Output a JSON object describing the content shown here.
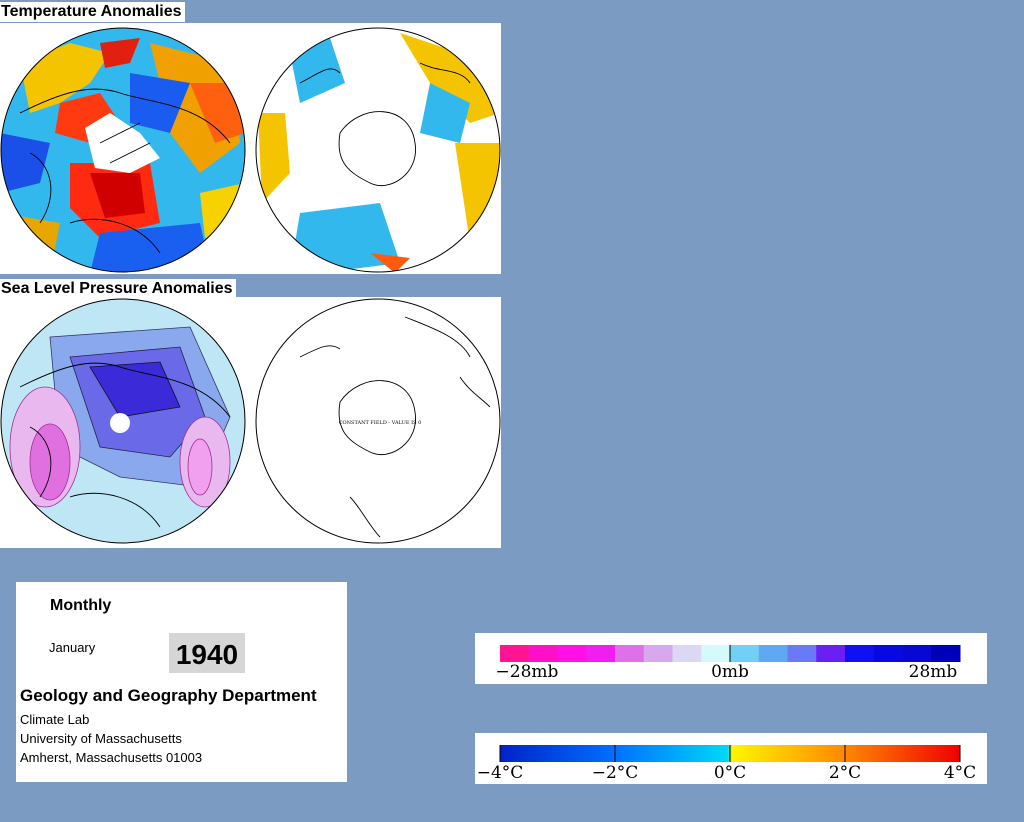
{
  "sections": {
    "temperature_title": "Temperature Anomalies",
    "pressure_title": "Sea Level Pressure Anomalies",
    "constant_field_note": "CONSTANT FIELD - VALUE IS 0"
  },
  "info": {
    "period": "Monthly",
    "month": "January",
    "year": "1940",
    "department": "Geology and Geography Department",
    "lab": "Climate Lab",
    "university": "University of Massachusetts",
    "address": "Amherst, Massachusetts 01003"
  },
  "pressure_legend": {
    "labels": [
      "−28mb",
      "0mb",
      "28mb"
    ],
    "colors": [
      "#ff1493",
      "#ff10c8",
      "#ff10e6",
      "#f01ef0",
      "#e070e8",
      "#d8a8ee",
      "#dcd8f4",
      "#d4fafa",
      "#72cff6",
      "#5fa8f3",
      "#6a7af5",
      "#6a20f0",
      "#1010f0",
      "#0808e0",
      "#0808d0",
      "#0000b8"
    ]
  },
  "temperature_legend": {
    "labels": [
      "−4°C",
      "−2°C",
      "0°C",
      "2°C",
      "4°C"
    ],
    "colors": [
      "#0022c8",
      "#0070ff",
      "#00d8f8",
      "#fff500",
      "#ff8800",
      "#f00000"
    ]
  }
}
